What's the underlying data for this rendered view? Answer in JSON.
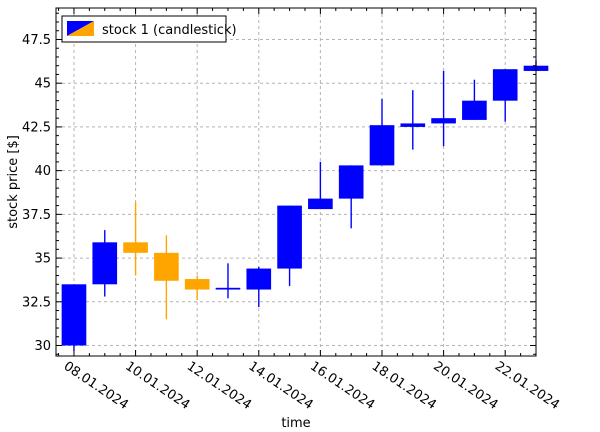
{
  "chart_data": {
    "type": "candlestick",
    "xlabel": "time",
    "ylabel": "stock price [$]",
    "ylim": [
      29.4,
      49.3
    ],
    "xlim": [
      "2024-01-07T10:00",
      "2024-01-23T00:00"
    ],
    "grid": true,
    "legend_position": "top-left",
    "y_ticks": [
      {
        "value": 30,
        "label": "30"
      },
      {
        "value": 32.5,
        "label": "32.5"
      },
      {
        "value": 35,
        "label": "35"
      },
      {
        "value": 37.5,
        "label": "37.5"
      },
      {
        "value": 40,
        "label": "40"
      },
      {
        "value": 42.5,
        "label": "42.5"
      },
      {
        "value": 45,
        "label": "45"
      },
      {
        "value": 47.5,
        "label": "47.5"
      }
    ],
    "x_ticks": [
      {
        "date": "2024-01-08",
        "label": "08.01.2024"
      },
      {
        "date": "2024-01-10",
        "label": "10.01.2024"
      },
      {
        "date": "2024-01-12",
        "label": "12.01.2024"
      },
      {
        "date": "2024-01-14",
        "label": "14.01.2024"
      },
      {
        "date": "2024-01-16",
        "label": "16.01.2024"
      },
      {
        "date": "2024-01-18",
        "label": "18.01.2024"
      },
      {
        "date": "2024-01-20",
        "label": "20.01.2024"
      },
      {
        "date": "2024-01-22",
        "label": "22.01.2024"
      }
    ],
    "series": [
      {
        "name": "stock 1 (candlestick)",
        "up_color": "#0000ff",
        "down_color": "#ffa500",
        "candles": [
          {
            "date": "2024-01-08",
            "open": 30.0,
            "high": 33.5,
            "low": 29.7,
            "close": 33.5
          },
          {
            "date": "2024-01-09",
            "open": 33.5,
            "high": 36.6,
            "low": 32.8,
            "close": 35.9
          },
          {
            "date": "2024-01-10",
            "open": 35.9,
            "high": 38.2,
            "low": 34.0,
            "close": 35.3
          },
          {
            "date": "2024-01-11",
            "open": 35.3,
            "high": 36.3,
            "low": 31.5,
            "close": 33.7
          },
          {
            "date": "2024-01-12",
            "open": 33.8,
            "high": 34.0,
            "low": 32.6,
            "close": 33.2
          },
          {
            "date": "2024-01-13",
            "open": 33.2,
            "high": 34.7,
            "low": 32.7,
            "close": 33.3
          },
          {
            "date": "2024-01-14",
            "open": 33.2,
            "high": 34.5,
            "low": 32.2,
            "close": 34.4
          },
          {
            "date": "2024-01-15",
            "open": 34.4,
            "high": 38.0,
            "low": 33.4,
            "close": 38.0
          },
          {
            "date": "2024-01-16",
            "open": 37.8,
            "high": 40.5,
            "low": 37.8,
            "close": 38.4
          },
          {
            "date": "2024-01-17",
            "open": 38.4,
            "high": 40.3,
            "low": 36.7,
            "close": 40.3
          },
          {
            "date": "2024-01-18",
            "open": 40.3,
            "high": 44.1,
            "low": 40.3,
            "close": 42.6
          },
          {
            "date": "2024-01-19",
            "open": 42.5,
            "high": 44.6,
            "low": 41.2,
            "close": 42.7
          },
          {
            "date": "2024-01-20",
            "open": 42.7,
            "high": 45.7,
            "low": 41.4,
            "close": 43.0
          },
          {
            "date": "2024-01-21",
            "open": 42.9,
            "high": 45.2,
            "low": 42.9,
            "close": 44.0
          },
          {
            "date": "2024-01-22",
            "open": 44.0,
            "high": 45.8,
            "low": 42.8,
            "close": 45.8
          },
          {
            "date": "2024-01-23",
            "open": 45.7,
            "high": 46.3,
            "low": 45.7,
            "close": 46.0
          }
        ]
      }
    ]
  }
}
